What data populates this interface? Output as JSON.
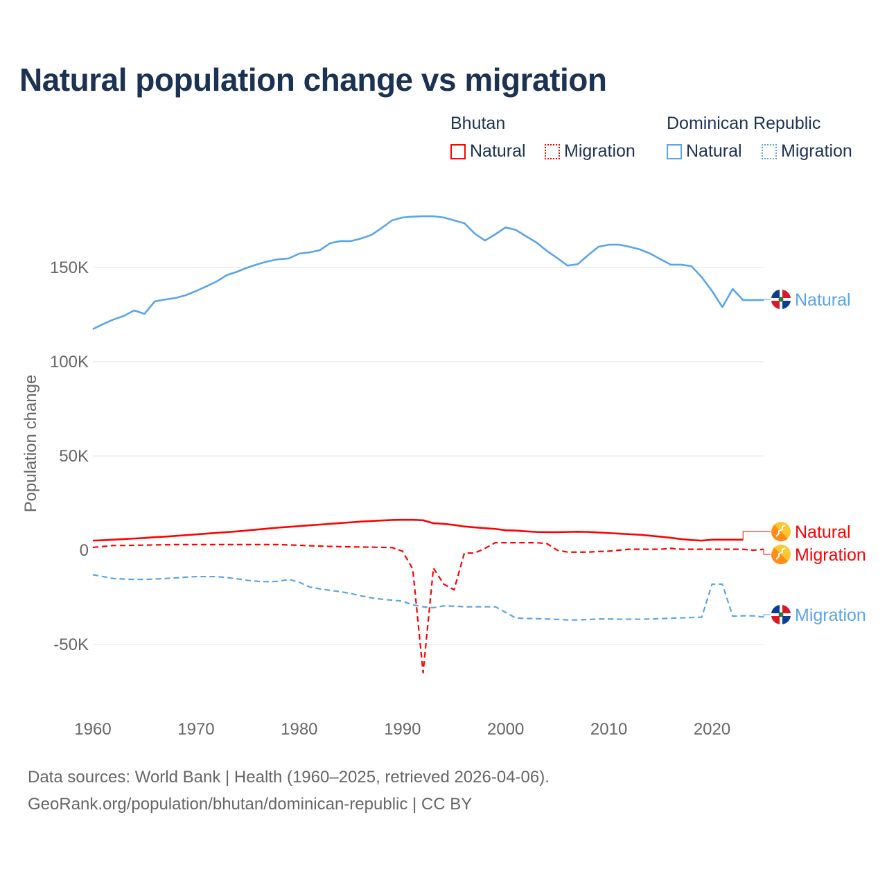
{
  "chart_data": {
    "type": "line",
    "title": "Natural population change vs migration",
    "ylabel": "Population change",
    "xlabel": "",
    "xlim": [
      1960,
      2025
    ],
    "ylim": [
      -75000,
      190000
    ],
    "x_ticks": [
      "1960",
      "1970",
      "1980",
      "1990",
      "2000",
      "2010",
      "2020"
    ],
    "y_ticks": [
      {
        "v": 150000,
        "label": "150K"
      },
      {
        "v": 100000,
        "label": "100K"
      },
      {
        "v": 50000,
        "label": "50K"
      },
      {
        "v": 0,
        "label": "0"
      },
      {
        "v": -50000,
        "label": "-50K"
      }
    ],
    "grid": true,
    "legend": {
      "groups": [
        {
          "name": "Bhutan",
          "items": [
            "Natural",
            "Migration"
          ]
        },
        {
          "name": "Dominican Republic",
          "items": [
            "Natural",
            "Migration"
          ]
        }
      ],
      "placement": "top-right"
    },
    "series": [
      {
        "name": "Dominican Republic Natural",
        "country": "Dominican Republic",
        "kind": "Natural",
        "color": "#5ba4e8",
        "dash": false,
        "start": 1960,
        "values_k": [
          117.3,
          120,
          122.4,
          124.3,
          127.2,
          125.4,
          132,
          133,
          133.8,
          135.3,
          137.5,
          140,
          142.6,
          146,
          147.8,
          150,
          151.8,
          153.3,
          154.4,
          154.8,
          157.4,
          158,
          159.2,
          162.9,
          164,
          164,
          165.4,
          167.3,
          171,
          175,
          176.5,
          177,
          177.2,
          177.2,
          176.5,
          175,
          173.5,
          168,
          164.3,
          167.6,
          171.3,
          169.9,
          166.5,
          163.2,
          158.8,
          155,
          151,
          151.8,
          156.6,
          161,
          162.1,
          162.1,
          161,
          159.6,
          157.4,
          154.4,
          151.5,
          151.5,
          150.7,
          144.9,
          137.5,
          129,
          138.6,
          132.7,
          132.7,
          132.7
        ]
      },
      {
        "name": "Bhutan Natural",
        "country": "Bhutan",
        "kind": "Natural",
        "color": "#ff0000",
        "dash": false,
        "start": 1960,
        "values_k": [
          5.1,
          5.3,
          5.6,
          5.9,
          6.2,
          6.5,
          6.9,
          7.2,
          7.6,
          8.0,
          8.4,
          8.8,
          9.2,
          9.6,
          10,
          10.5,
          11,
          11.5,
          12,
          12.4,
          12.8,
          13.2,
          13.6,
          14,
          14.4,
          14.8,
          15.2,
          15.5,
          15.8,
          16,
          16.1,
          16.1,
          15.9,
          14.3,
          14,
          13.4,
          12.6,
          12.1,
          11.7,
          11.3,
          10.6,
          10.4,
          10,
          9.7,
          9.6,
          9.6,
          9.7,
          9.8,
          9.7,
          9.4,
          9.1,
          8.8,
          8.5,
          8.2,
          7.7,
          7.2,
          6.6,
          5.9,
          5.4,
          5.1,
          5.6,
          5.6,
          5.6,
          5.6
        ]
      },
      {
        "name": "Bhutan Migration",
        "country": "Bhutan",
        "kind": "Migration",
        "color": "#ff0000",
        "dash": true,
        "start": 1960,
        "values_k": [
          1.5,
          2,
          2.5,
          2.5,
          2.6,
          2.7,
          2.8,
          2.9,
          3,
          3,
          3,
          3,
          3,
          3,
          3,
          3,
          3,
          3,
          3,
          2.8,
          2.6,
          2.4,
          2.2,
          2,
          1.9,
          1.8,
          1.7,
          1.6,
          1.5,
          1.4,
          -0.5,
          -10,
          -65,
          -9.5,
          -18,
          -21,
          -1.5,
          -1.5,
          1,
          4,
          4,
          4,
          4,
          4,
          3.5,
          0,
          -1,
          -1,
          -1,
          -0.7,
          -0.5,
          0,
          0.5,
          0.5,
          0.5,
          0.5,
          1,
          0.5,
          0.5,
          0.5,
          0.5,
          0.5,
          0.5,
          0.5,
          0,
          0.5
        ]
      },
      {
        "name": "Dominican Republic Migration",
        "country": "Dominican Republic",
        "kind": "Migration",
        "color": "#5ba4e8",
        "dash": true,
        "start": 1960,
        "values_k": [
          -13,
          -14,
          -15,
          -15.3,
          -15.5,
          -15.5,
          -15.3,
          -15,
          -14.7,
          -14.3,
          -14,
          -14,
          -14,
          -14.5,
          -15.2,
          -16,
          -16.5,
          -16.7,
          -16.5,
          -15.5,
          -17,
          -19.5,
          -20.5,
          -21.3,
          -22,
          -23,
          -24.2,
          -25.3,
          -26,
          -26.5,
          -27,
          -29,
          -30,
          -30.5,
          -29.5,
          -29.7,
          -30,
          -30,
          -30,
          -30,
          -33,
          -36,
          -36.2,
          -36.3,
          -36.5,
          -36.7,
          -37,
          -37,
          -36.8,
          -36.5,
          -36.5,
          -36.6,
          -36.6,
          -36.6,
          -36.5,
          -36.3,
          -36.1,
          -35.9,
          -35.7,
          -35.5,
          -18,
          -18,
          -35,
          -34.8,
          -34.8,
          -35.5
        ]
      }
    ],
    "end_labels": [
      "Natural",
      "Natural",
      "Migration",
      "Migration"
    ]
  },
  "source_line1": "Data sources: World Bank | Health (1960–2025, retrieved 2026-04-06).",
  "source_line2": "GeoRank.org/population/bhutan/dominican-republic | CC BY"
}
